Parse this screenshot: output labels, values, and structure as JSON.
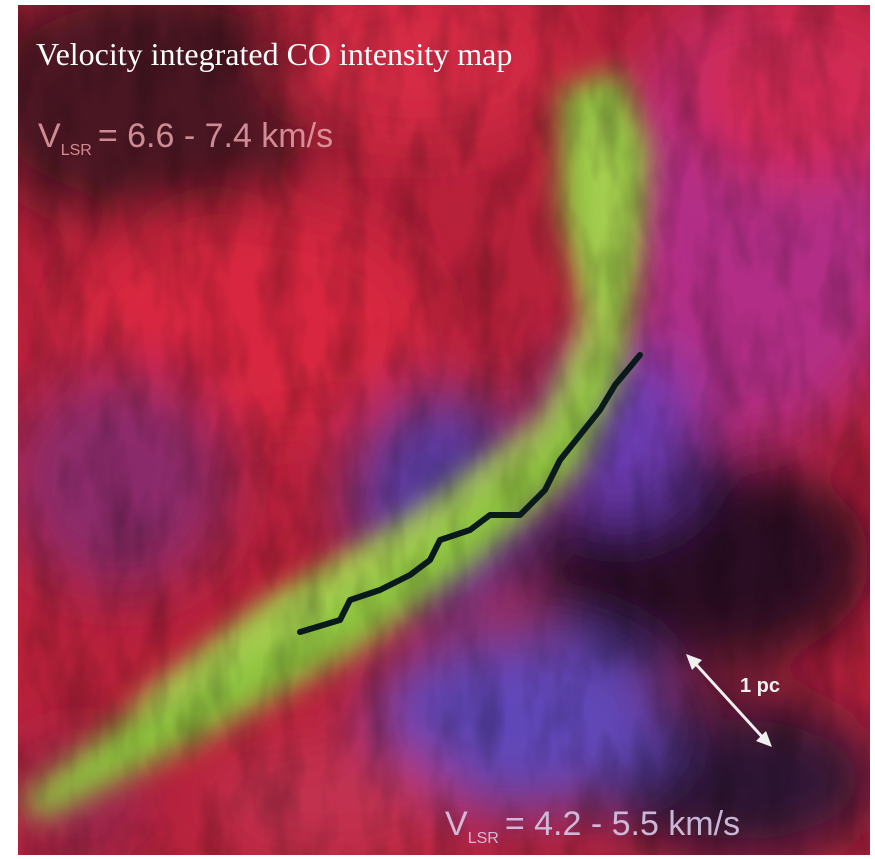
{
  "title": "Velocity integrated CO intensity map",
  "top_label": {
    "symbol": "V",
    "subscript": "LSR",
    "range": "= 6.6 - 7.4 km/s"
  },
  "bottom_label": {
    "symbol": "V",
    "subscript": "LSR",
    "range": "= 4.2 - 5.5 km/s"
  },
  "scale_bar": {
    "label": "1 pc"
  }
}
